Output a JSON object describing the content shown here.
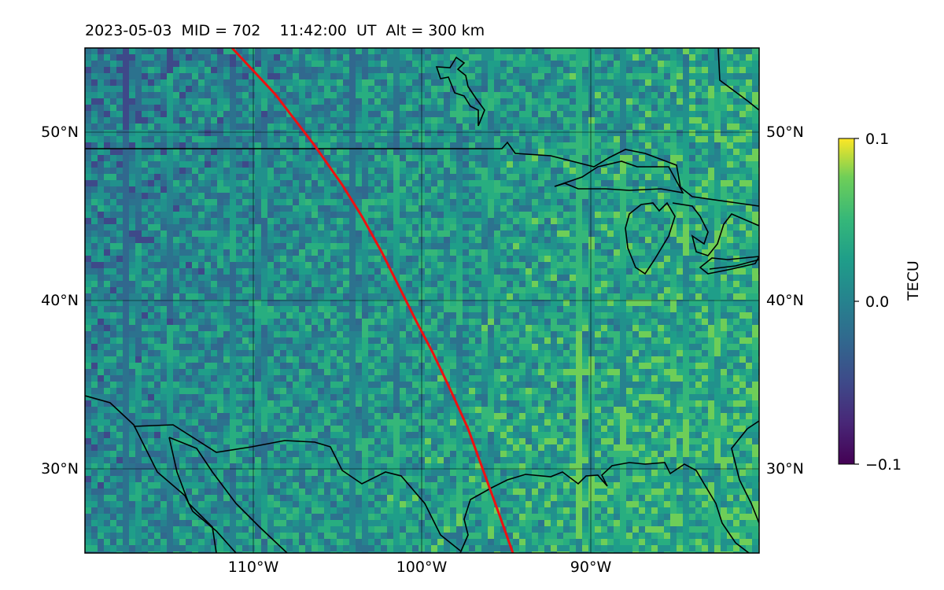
{
  "title": "2023-05-03  MID = 702    11:42:00  UT  Alt = 300 km",
  "map": {
    "lon_range": [
      -120,
      -80
    ],
    "lat_range": [
      25,
      55
    ],
    "lat_ticks": [
      {
        "lat": 50,
        "label": "50°N"
      },
      {
        "lat": 40,
        "label": "40°N"
      },
      {
        "lat": 30,
        "label": "30°N"
      }
    ],
    "lon_ticks": [
      {
        "lon": -110,
        "label": "110°W"
      },
      {
        "lon": -100,
        "label": "100°W"
      },
      {
        "lon": -90,
        "label": "90°W"
      }
    ],
    "gridlines": true,
    "track_color": "#ee1111",
    "coastline_color": "#000000"
  },
  "colorbar": {
    "label": "TECU",
    "colormap": "viridis",
    "ticks": [
      {
        "value": 0.1,
        "label": "0.1"
      },
      {
        "value": 0.0,
        "label": "0.0"
      },
      {
        "value": -0.1,
        "label": "−0.1"
      }
    ],
    "range": [
      -0.1,
      0.1
    ]
  }
}
